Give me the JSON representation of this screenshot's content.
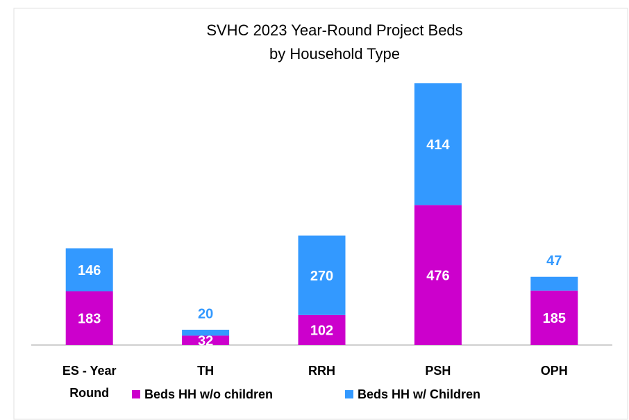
{
  "chart_data": {
    "type": "stacked_bar",
    "title": [
      "SVHC 2023 Year-Round Project Beds",
      "by Household Type"
    ],
    "categories": [
      "ES - Year Round",
      "TH",
      "RRH",
      "PSH",
      "OPH"
    ],
    "series": [
      {
        "name": "Beds HH w/o children",
        "color": "#cc00cc",
        "values": [
          183,
          32,
          102,
          476,
          185
        ]
      },
      {
        "name": "Beds HH w/ Children",
        "color": "#3399ff",
        "values": [
          146,
          20,
          270,
          414,
          47
        ]
      }
    ],
    "legend": "bottom"
  }
}
